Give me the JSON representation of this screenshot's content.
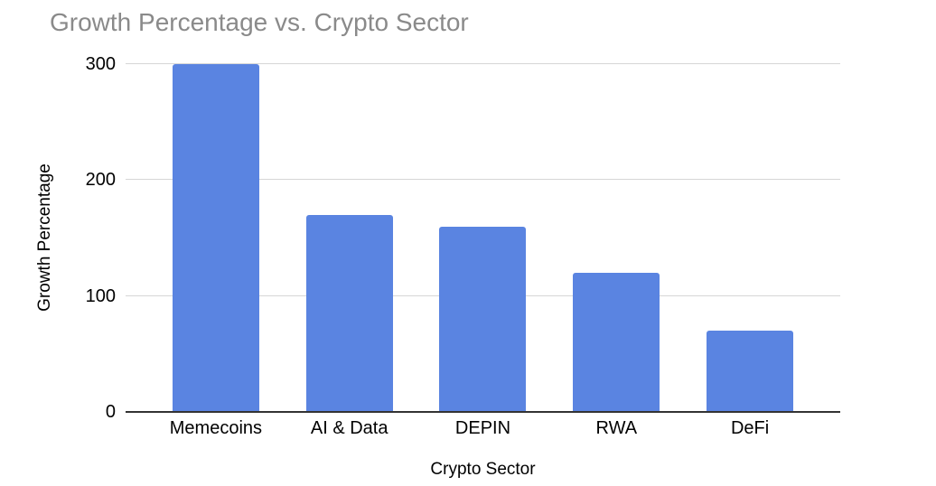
{
  "chart_data": {
    "type": "bar",
    "title": "Growth Percentage vs. Crypto Sector",
    "categories": [
      "Memecoins",
      "AI & Data",
      "DEPIN",
      "RWA",
      "DeFi"
    ],
    "values": [
      300,
      170,
      160,
      120,
      70
    ],
    "xlabel": "Crypto Sector",
    "ylabel": "Growth Percentage",
    "ylim": [
      0,
      300
    ],
    "yticks": [
      0,
      100,
      200,
      300
    ],
    "grid": true,
    "legend_position": "none",
    "bar_color": "#5a84e1",
    "title_color": "#8a8a8a",
    "gridline_color": "#d6d6d6",
    "baseline_color": "#333333",
    "tick_label_color": "#000000"
  }
}
